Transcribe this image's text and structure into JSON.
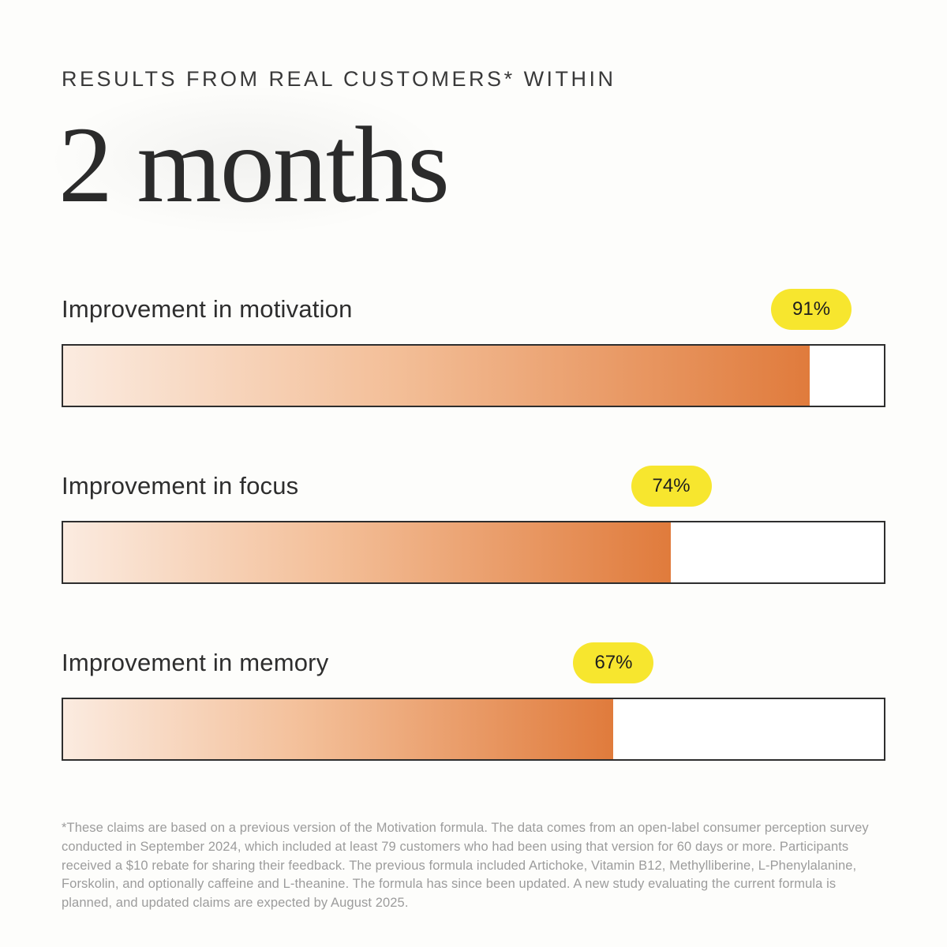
{
  "header": {
    "eyebrow": "RESULTS FROM REAL CUSTOMERS* WITHIN",
    "title": "2 months"
  },
  "chart_data": {
    "type": "bar",
    "orientation": "horizontal",
    "title": "Results from real customers* within 2 months",
    "categories": [
      "Improvement in motivation",
      "Improvement in focus",
      "Improvement in memory"
    ],
    "values": [
      91,
      74,
      67
    ],
    "value_labels": [
      "91%",
      "74%",
      "67%"
    ],
    "xlim": [
      0,
      100
    ],
    "grid": false,
    "legend": false,
    "layout_hints": {
      "value_badge_position": "centered-above-fill-end",
      "bar_fill": "left-to-right orange gradient",
      "bar_track": "white with dark border"
    }
  },
  "metrics": [
    {
      "label": "Improvement in motivation",
      "value": 91,
      "badge": "91%"
    },
    {
      "label": "Improvement in focus",
      "value": 74,
      "badge": "74%"
    },
    {
      "label": "Improvement in memory",
      "value": 67,
      "badge": "67%"
    }
  ],
  "footnote": {
    "text": "*These claims are based on a previous version of the Motivation formula. The data comes from an open-label consumer perception survey conducted in September 2024, which included at least 79 customers who had been using that version for 60 days or more. Participants received a $10 rebate for sharing their feedback. The previous formula included Artichoke, Vitamin B12, Methylliberine, L-Phenylalanine, Forskolin, and optionally caffeine and L-theanine. The formula has since been updated. A new study evaluating the current formula is planned, and updated claims are expected by August 2025."
  },
  "colors": {
    "background": "#FDFDFB",
    "text_dark": "#2E2E2E",
    "badge_yellow": "#F7E62E",
    "bar_border": "#2E2E2E",
    "bar_gradient_start": "#FBEBE0",
    "bar_gradient_end": "#E07B3C",
    "footnote_gray": "#9C9C9C"
  }
}
